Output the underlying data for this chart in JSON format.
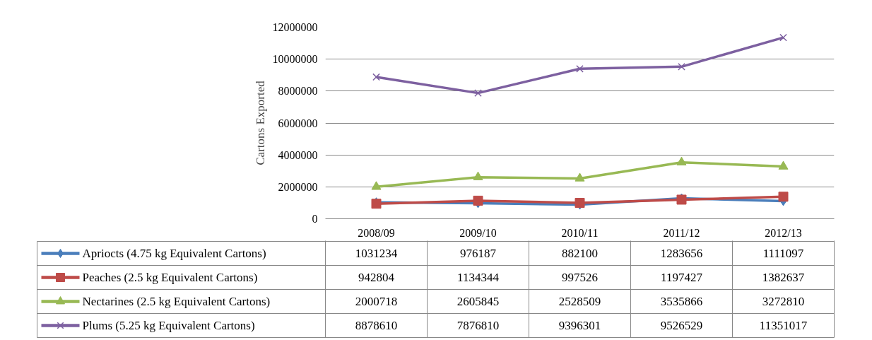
{
  "chart_data": {
    "type": "line",
    "ylabel": "Cartons Exported",
    "categories": [
      "2008/09",
      "2009/10",
      "2010/11",
      "2011/12",
      "2012/13"
    ],
    "series": [
      {
        "name": "Apriocts (4.75 kg Equivalent Cartons)",
        "color": "#4a7ebb",
        "marker": "diamond",
        "values": [
          1031234,
          976187,
          882100,
          1283656,
          1111097
        ]
      },
      {
        "name": "Peaches (2.5 kg Equivalent Cartons)",
        "color": "#be4b48",
        "marker": "square",
        "values": [
          942804,
          1134344,
          997526,
          1197427,
          1382637
        ]
      },
      {
        "name": "Nectarines (2.5 kg Equivalent Cartons)",
        "color": "#98b954",
        "marker": "triangle",
        "values": [
          2000718,
          2605845,
          2528509,
          3535866,
          3272810
        ]
      },
      {
        "name": "Plums (5.25 kg Equivalent Cartons)",
        "color": "#7d60a0",
        "marker": "cross",
        "values": [
          8878610,
          7876810,
          9396301,
          9526529,
          11351017
        ]
      }
    ],
    "ylim": [
      0,
      12000000
    ],
    "yticks": [
      0,
      2000000,
      4000000,
      6000000,
      8000000,
      10000000,
      12000000
    ],
    "grid": "y",
    "legend": "bottom",
    "data_labels": true,
    "line_style": "solid"
  }
}
